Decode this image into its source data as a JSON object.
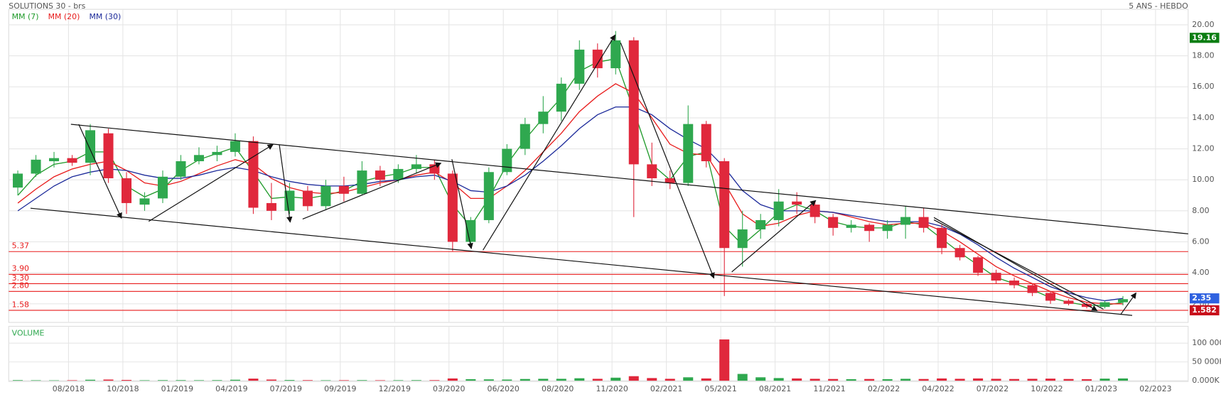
{
  "chart_data": {
    "type": "candlestick",
    "title": "SOLUTIONS 30 - brs",
    "subtitle": "5 ANS - HEBDO",
    "x": [
      0.5,
      1.5,
      2.5,
      3.5,
      4.5,
      5.5,
      6.5,
      7.5,
      8.5,
      9.5,
      10.5,
      11.5,
      12.5,
      13.5,
      14.5,
      15.5,
      16.5,
      17.5,
      18.5,
      19.5,
      20.5,
      21.5,
      22.5,
      23.5,
      24.5,
      25.5,
      26.5,
      27.5,
      28.5,
      29.5,
      30.5,
      31.5,
      32.5,
      33.5,
      34.5,
      35.5,
      36.5,
      37.5,
      38.5,
      39.5,
      40.5,
      41.5,
      42.5,
      43.5,
      44.5,
      45.5,
      46.5,
      47.5,
      48.5,
      49.5,
      50.5,
      51.5,
      52.5,
      53.5,
      54.5,
      55.5,
      56.5,
      57.5,
      58.5,
      59.5,
      60.5,
      61.5
    ],
    "open": [
      9.5,
      10.4,
      11.2,
      11.4,
      11.1,
      13.0,
      10.1,
      8.4,
      8.8,
      10.2,
      11.2,
      11.6,
      11.8,
      12.5,
      8.5,
      8.0,
      9.3,
      8.3,
      9.6,
      9.1,
      10.6,
      10.0,
      10.7,
      11.0,
      10.4,
      6.0,
      7.4,
      10.5,
      12.0,
      13.6,
      14.4,
      16.2,
      18.4,
      17.2,
      19.0,
      11.0,
      10.1,
      9.8,
      13.6,
      11.2,
      5.6,
      6.8,
      7.4,
      8.6,
      8.4,
      7.6,
      6.9,
      7.1,
      6.7,
      7.1,
      7.6,
      6.9,
      5.6,
      5.0,
      4.0,
      3.5,
      3.2,
      2.7,
      2.2,
      2.0,
      1.8,
      2.1
    ],
    "high": [
      10.6,
      11.6,
      11.8,
      11.6,
      13.6,
      13.3,
      10.5,
      9.2,
      10.6,
      11.6,
      12.1,
      12.2,
      13.0,
      12.8,
      9.8,
      9.8,
      9.6,
      10.0,
      10.2,
      11.2,
      10.9,
      11.0,
      11.6,
      11.3,
      10.6,
      7.6,
      10.8,
      12.3,
      14.0,
      15.4,
      16.6,
      19.0,
      18.8,
      19.6,
      19.2,
      12.4,
      10.6,
      14.8,
      13.8,
      11.4,
      8.0,
      7.8,
      9.4,
      9.2,
      8.6,
      7.8,
      7.4,
      7.2,
      7.4,
      8.3,
      8.2,
      7.1,
      5.8,
      5.1,
      4.2,
      3.7,
      3.3,
      2.8,
      2.3,
      2.1,
      2.2,
      2.5
    ],
    "low": [
      9.0,
      10.2,
      10.8,
      10.9,
      10.3,
      9.8,
      7.8,
      8.0,
      8.5,
      10.0,
      11.0,
      11.2,
      11.5,
      7.8,
      7.4,
      7.8,
      8.0,
      8.1,
      8.6,
      9.0,
      9.6,
      9.8,
      10.4,
      10.0,
      5.4,
      5.6,
      7.2,
      10.3,
      11.6,
      13.0,
      13.8,
      15.8,
      16.6,
      16.8,
      7.6,
      9.6,
      9.4,
      9.6,
      10.8,
      2.5,
      4.4,
      6.2,
      7.0,
      7.8,
      7.2,
      6.4,
      6.6,
      6.0,
      6.2,
      6.2,
      6.6,
      5.2,
      4.8,
      3.8,
      3.3,
      3.0,
      2.5,
      2.0,
      1.9,
      1.7,
      1.7,
      1.9
    ],
    "close": [
      10.4,
      11.3,
      11.4,
      11.1,
      13.2,
      10.1,
      8.5,
      8.8,
      10.2,
      11.2,
      11.6,
      11.8,
      12.5,
      8.2,
      8.0,
      9.3,
      8.3,
      9.6,
      9.1,
      10.6,
      10.0,
      10.7,
      11.0,
      10.4,
      6.0,
      7.4,
      10.5,
      12.0,
      13.6,
      14.4,
      16.2,
      18.4,
      17.2,
      19.0,
      11.0,
      10.1,
      9.8,
      13.6,
      11.2,
      5.6,
      6.8,
      7.4,
      8.6,
      8.4,
      7.6,
      6.9,
      7.1,
      6.7,
      7.1,
      7.6,
      6.9,
      5.6,
      5.0,
      4.0,
      3.5,
      3.2,
      2.7,
      2.2,
      2.0,
      1.8,
      2.1,
      2.3
    ],
    "up_color": "#2fa84f",
    "down_color": "#e0283c",
    "series": [
      {
        "name": "MM (7)",
        "color": "#1f9a2a",
        "values": [
          9.0,
          10.3,
          11.0,
          11.2,
          11.8,
          11.8,
          9.6,
          8.9,
          9.4,
          10.6,
          11.3,
          11.7,
          12.1,
          10.5,
          8.8,
          8.9,
          8.8,
          9.0,
          9.3,
          9.9,
          10.2,
          10.4,
          10.8,
          10.8,
          8.4,
          7.0,
          8.8,
          11.0,
          12.6,
          14.0,
          15.3,
          17.0,
          17.6,
          17.8,
          14.5,
          11.0,
          10.0,
          11.5,
          11.8,
          7.0,
          5.8,
          6.8,
          7.9,
          8.4,
          8.0,
          7.3,
          7.0,
          6.9,
          6.9,
          7.3,
          7.1,
          6.2,
          5.3,
          4.5,
          3.7,
          3.3,
          2.9,
          2.4,
          2.1,
          1.9,
          1.9,
          2.1
        ]
      },
      {
        "name": "MM (20)",
        "color": "#e81c1c",
        "values": [
          8.5,
          9.4,
          10.2,
          10.7,
          11.0,
          11.2,
          10.6,
          9.8,
          9.6,
          9.9,
          10.4,
          10.9,
          11.3,
          11.0,
          10.1,
          9.5,
          9.2,
          9.1,
          9.2,
          9.5,
          9.8,
          10.0,
          10.3,
          10.5,
          9.8,
          8.8,
          8.8,
          9.6,
          10.6,
          11.8,
          13.0,
          14.4,
          15.4,
          16.2,
          15.6,
          14.0,
          12.3,
          11.7,
          11.6,
          9.8,
          7.8,
          7.0,
          7.2,
          7.7,
          8.0,
          7.9,
          7.6,
          7.3,
          7.1,
          7.2,
          7.2,
          6.7,
          6.0,
          5.2,
          4.4,
          3.8,
          3.3,
          2.8,
          2.4,
          2.1,
          2.0,
          2.0
        ]
      },
      {
        "name": "MM (30)",
        "color": "#1c2a9a",
        "values": [
          8.0,
          8.8,
          9.6,
          10.2,
          10.5,
          10.7,
          10.6,
          10.3,
          10.1,
          10.1,
          10.3,
          10.6,
          10.8,
          10.6,
          10.2,
          9.9,
          9.7,
          9.6,
          9.6,
          9.7,
          9.9,
          10.0,
          10.2,
          10.3,
          9.9,
          9.3,
          9.2,
          9.6,
          10.3,
          11.2,
          12.2,
          13.3,
          14.2,
          14.7,
          14.7,
          14.2,
          13.3,
          12.6,
          12.0,
          10.8,
          9.3,
          8.4,
          8.0,
          8.0,
          8.0,
          7.9,
          7.7,
          7.5,
          7.3,
          7.3,
          7.3,
          7.0,
          6.5,
          5.8,
          5.0,
          4.3,
          3.7,
          3.1,
          2.7,
          2.4,
          2.2,
          2.35
        ]
      }
    ],
    "xlim": [
      0,
      65.1
    ],
    "xticks": [
      {
        "value": 3.3,
        "label": "08/2018"
      },
      {
        "value": 6.3,
        "label": "10/2018"
      },
      {
        "value": 9.3,
        "label": "01/2019"
      },
      {
        "value": 12.3,
        "label": "04/2019"
      },
      {
        "value": 15.3,
        "label": "07/2019"
      },
      {
        "value": 18.3,
        "label": "09/2019"
      },
      {
        "value": 21.3,
        "label": "12/2019"
      },
      {
        "value": 24.3,
        "label": "03/2020"
      },
      {
        "value": 27.3,
        "label": "06/2020"
      },
      {
        "value": 30.3,
        "label": "08/2020"
      },
      {
        "value": 33.3,
        "label": "11/2020"
      },
      {
        "value": 36.3,
        "label": "02/2021"
      },
      {
        "value": 39.3,
        "label": "05/2021"
      },
      {
        "value": 42.3,
        "label": "08/2021"
      },
      {
        "value": 45.3,
        "label": "11/2021"
      },
      {
        "value": 48.3,
        "label": "02/2022"
      },
      {
        "value": 51.3,
        "label": "04/2022"
      },
      {
        "value": 54.3,
        "label": "07/2022"
      },
      {
        "value": 57.3,
        "label": "10/2022"
      },
      {
        "value": 60.3,
        "label": "01/2023"
      },
      {
        "value": 63.3,
        "label": "02/2023"
      }
    ],
    "ylim": [
      0.8,
      21
    ],
    "yticks": [
      {
        "value": 2,
        "label": "2.00"
      },
      {
        "value": 4,
        "label": "4.00"
      },
      {
        "value": 6,
        "label": "6.00"
      },
      {
        "value": 8,
        "label": "8.00"
      },
      {
        "value": 10,
        "label": "10.00"
      },
      {
        "value": 12,
        "label": "12.00"
      },
      {
        "value": 14,
        "label": "14.00"
      },
      {
        "value": 16,
        "label": "16.00"
      },
      {
        "value": 18,
        "label": "18.00"
      },
      {
        "value": 20,
        "label": "20.00"
      }
    ],
    "grid": true,
    "level_color": "#e81c1c",
    "levels": [
      {
        "value": 5.37,
        "label": "5.37"
      },
      {
        "value": 3.9,
        "label": "3.90"
      },
      {
        "value": 3.3,
        "label": "3.30"
      },
      {
        "value": 2.8,
        "label": "2.80"
      },
      {
        "value": 1.58,
        "label": "1.58"
      }
    ],
    "badges": [
      {
        "value": 19.16,
        "color": "#0b7d12"
      },
      {
        "value": 2.35,
        "color": "#2f62e0"
      },
      {
        "value": 1.582,
        "color": "#c8101c"
      }
    ],
    "volume": {
      "title": "VOLUME",
      "title_color": "#2fa84f",
      "ylim": [
        0,
        145000
      ],
      "yticks": [
        {
          "value": 0,
          "label": "0.000K"
        },
        {
          "value": 50000,
          "label": "50 000K"
        },
        {
          "value": 100000,
          "label": "100 000K"
        }
      ],
      "values": [
        1500,
        1200,
        1000,
        1200,
        2500,
        3000,
        2000,
        1200,
        1500,
        1500,
        1300,
        1500,
        2500,
        5500,
        3000,
        1800,
        1500,
        1200,
        1300,
        1500,
        1200,
        1300,
        1500,
        1500,
        6000,
        4000,
        3500,
        3000,
        4500,
        5000,
        5000,
        6500,
        5000,
        8000,
        12000,
        7000,
        5000,
        9000,
        6000,
        110000,
        18000,
        9000,
        7000,
        6000,
        5000,
        4500,
        4000,
        4500,
        4000,
        5000,
        4500,
        6000,
        5000,
        6000,
        5000,
        4500,
        5000,
        5500,
        4500,
        4000,
        5500,
        6000
      ]
    }
  }
}
